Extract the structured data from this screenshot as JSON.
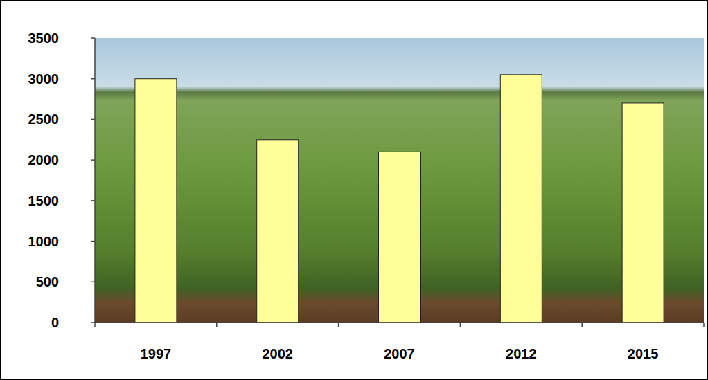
{
  "chart_data": {
    "type": "bar",
    "categories": [
      "1997",
      "2002",
      "2007",
      "2012",
      "2015"
    ],
    "values": [
      3000,
      2250,
      2100,
      3050,
      2700
    ],
    "color": "#ffff99",
    "ylim": [
      0,
      3500
    ],
    "yticks": [
      0,
      500,
      1000,
      1500,
      2000,
      2500,
      3000,
      3500
    ],
    "grid": false
  }
}
